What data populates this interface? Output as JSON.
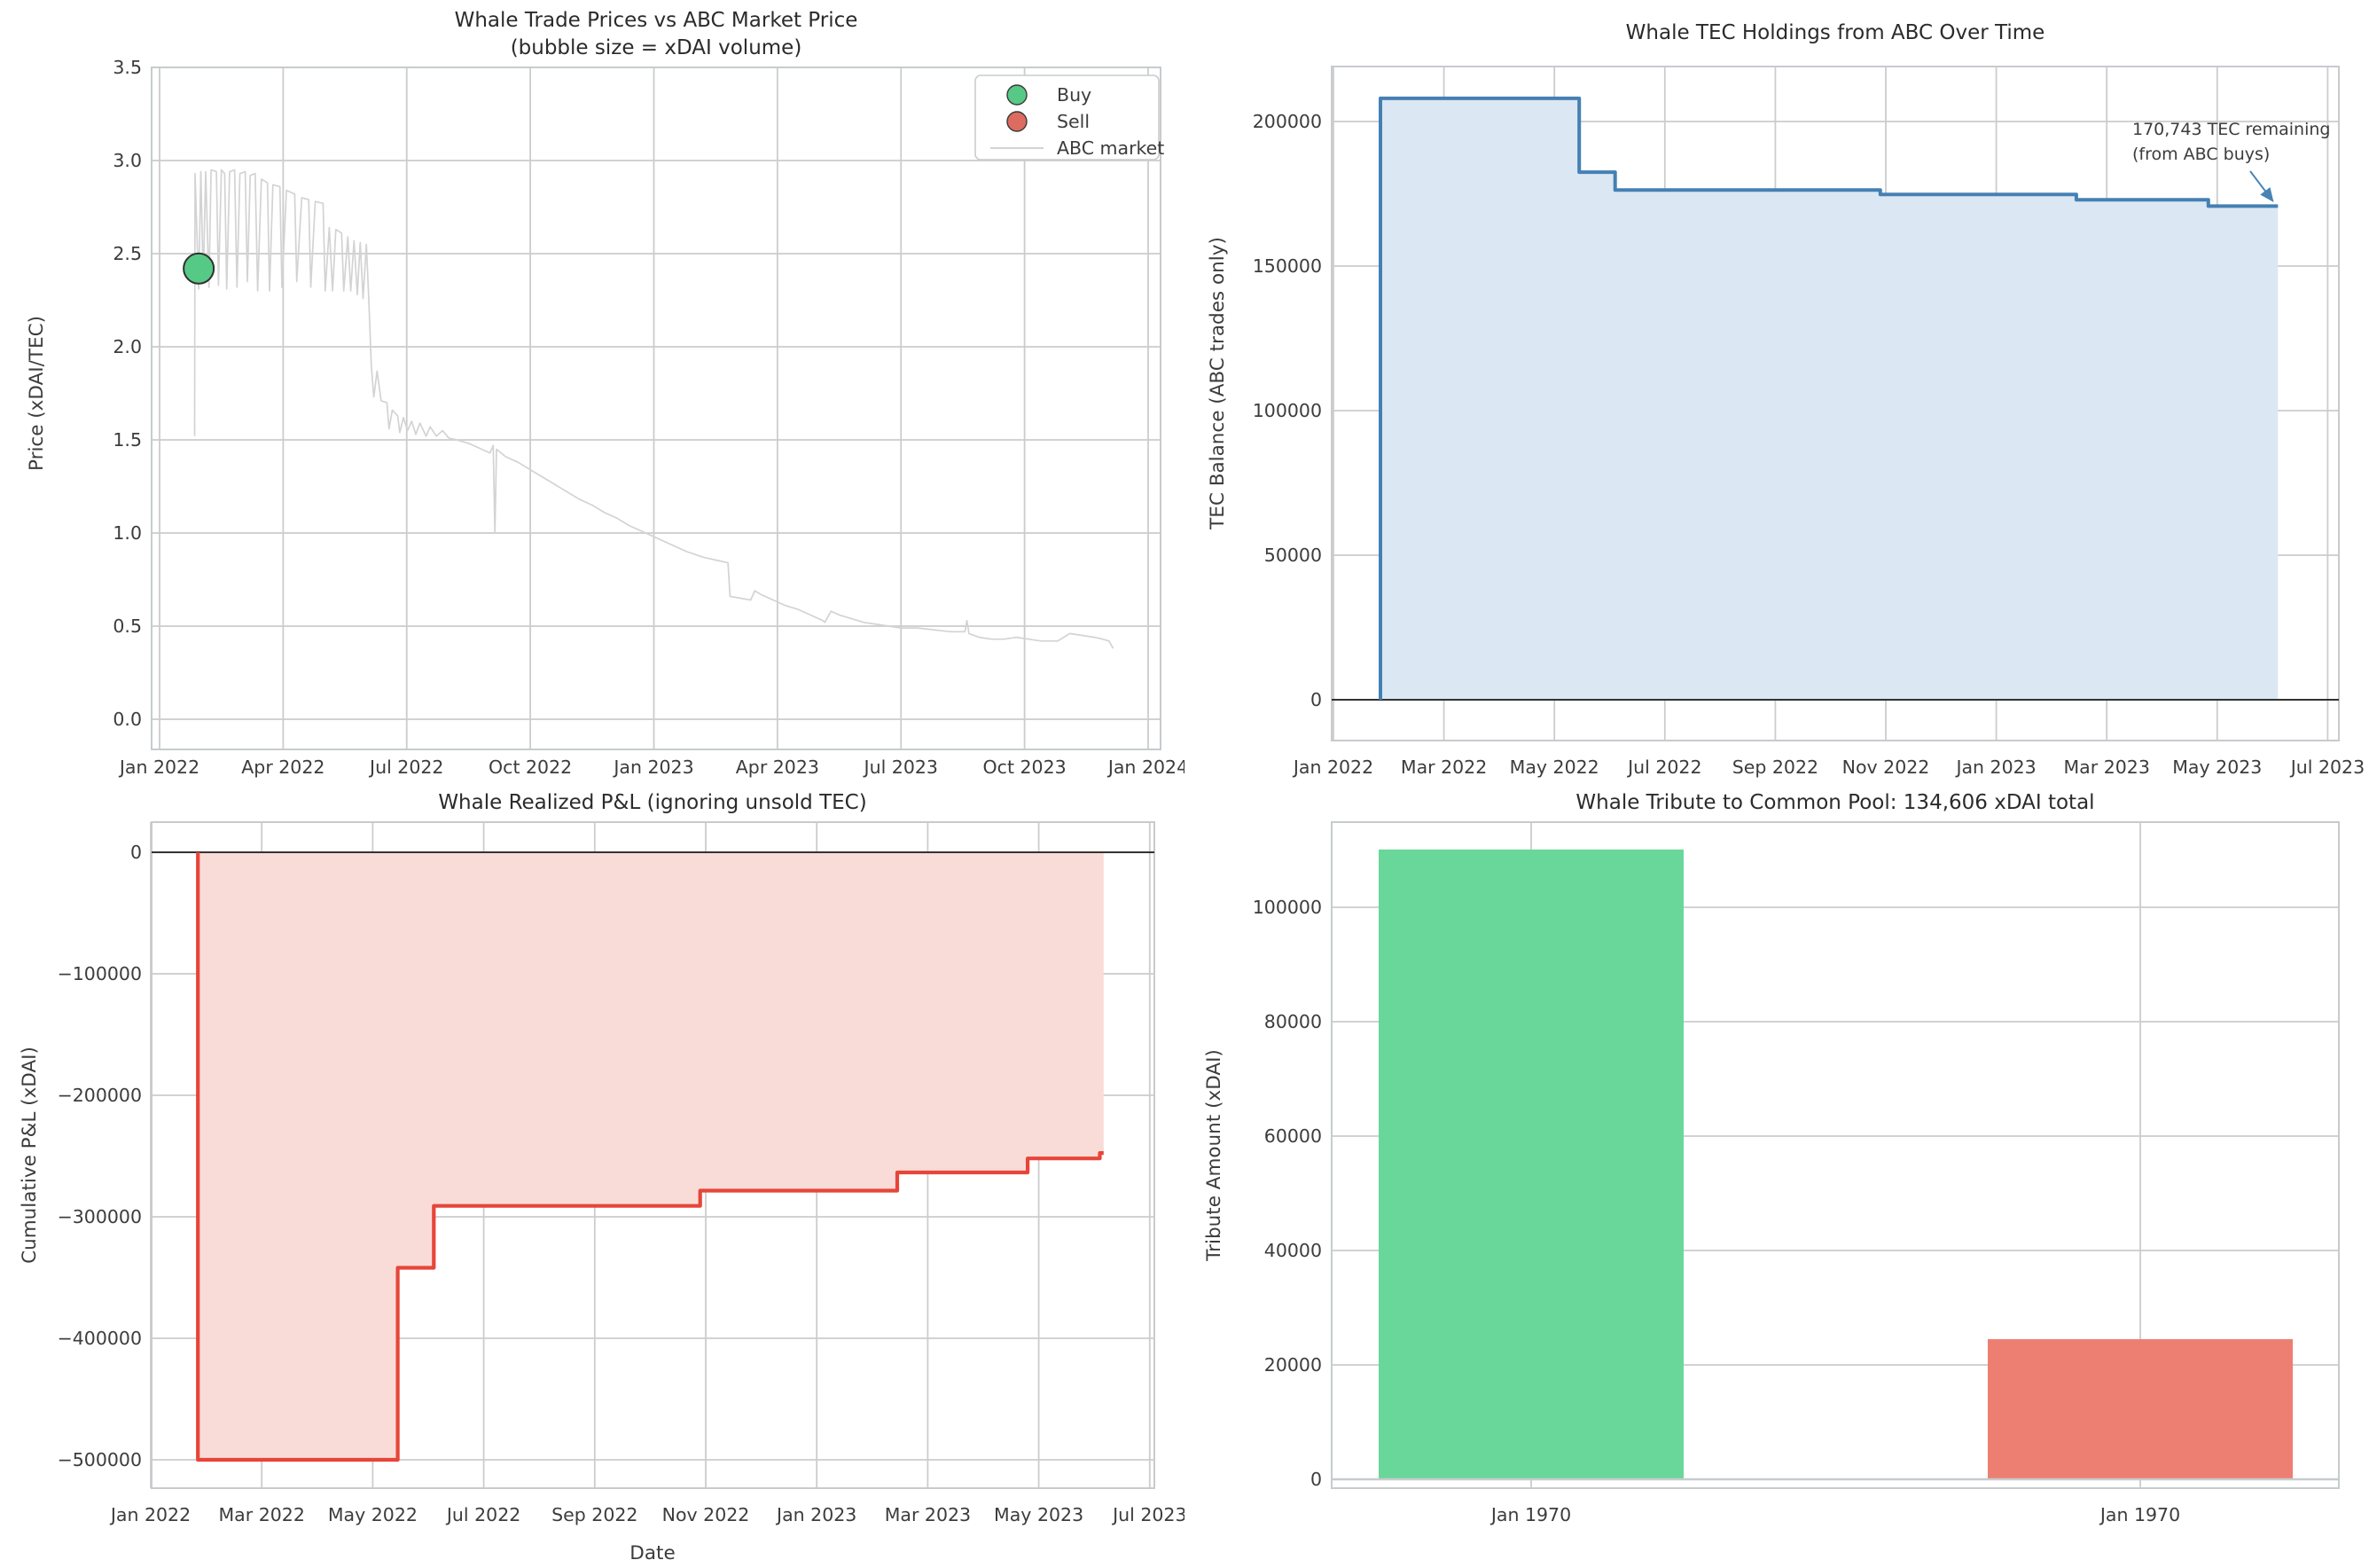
{
  "colors": {
    "background": "#ffffff",
    "grid": "#cccccc",
    "spine": "#c7cbce",
    "tick_text": "#3c3c3c",
    "title_text": "#2b2b2b",
    "buy_green": "#57c987",
    "sell_red": "#dc6b60",
    "market_gray": "#d3d3d3",
    "holdings_blue": "#4580b4",
    "holdings_fill": "#dbe7f2",
    "pnl_red": "#e74539",
    "pnl_fill": "#f9dcd7",
    "bar_green": "#6ad79a",
    "bar_red": "#ec7f72",
    "zero_line": "#1a1a1a",
    "annotation_blue": "#4983b4"
  },
  "chart_data": [
    {
      "type": "scatter",
      "title": "Whale Trade Prices vs ABC Market Price",
      "subtitle": "(bubble size = xDAI volume)",
      "ylabel": "Price (xDAI/TEC)",
      "ylim": [
        0.0,
        3.5
      ],
      "yticks": [
        "0.0",
        "0.5",
        "1.0",
        "1.5",
        "2.0",
        "2.5",
        "3.0",
        "3.5"
      ],
      "ytick_values": [
        0,
        0.5,
        1.0,
        1.5,
        2.0,
        2.5,
        3.0,
        3.5
      ],
      "x_unit": "months since Jan 2022",
      "xtick_months": [
        0,
        3,
        6,
        9,
        12,
        15,
        18,
        21,
        24
      ],
      "xtick_labels": [
        "Jan 2022",
        "Apr 2022",
        "Jul 2022",
        "Oct 2022",
        "Jan 2023",
        "Apr 2023",
        "Jul 2023",
        "Oct 2023",
        "Jan 2024"
      ],
      "legend": [
        {
          "label": "Buy",
          "marker": "circle"
        },
        {
          "label": "Sell",
          "marker": "circle"
        },
        {
          "label": "ABC market",
          "marker": "line"
        }
      ],
      "buy_points": [
        {
          "month": 0.95,
          "price": 2.42,
          "radius": 17,
          "note": "single large buy bubble"
        }
      ],
      "sell_points": [],
      "abc_market_line": [
        [
          0.85,
          1.52
        ],
        [
          0.86,
          2.93
        ],
        [
          0.95,
          2.31
        ],
        [
          1.0,
          2.94
        ],
        [
          1.06,
          2.35
        ],
        [
          1.12,
          2.94
        ],
        [
          1.2,
          2.32
        ],
        [
          1.25,
          2.95
        ],
        [
          1.38,
          2.94
        ],
        [
          1.43,
          2.33
        ],
        [
          1.5,
          2.95
        ],
        [
          1.58,
          2.93
        ],
        [
          1.63,
          2.31
        ],
        [
          1.7,
          2.94
        ],
        [
          1.82,
          2.95
        ],
        [
          1.88,
          2.32
        ],
        [
          1.95,
          2.93
        ],
        [
          2.08,
          2.94
        ],
        [
          2.13,
          2.35
        ],
        [
          2.2,
          2.92
        ],
        [
          2.32,
          2.93
        ],
        [
          2.38,
          2.3
        ],
        [
          2.47,
          2.9
        ],
        [
          2.62,
          2.88
        ],
        [
          2.67,
          2.3
        ],
        [
          2.75,
          2.87
        ],
        [
          2.92,
          2.86
        ],
        [
          2.97,
          2.32
        ],
        [
          3.08,
          2.84
        ],
        [
          3.28,
          2.82
        ],
        [
          3.33,
          2.35
        ],
        [
          3.45,
          2.8
        ],
        [
          3.62,
          2.79
        ],
        [
          3.67,
          2.32
        ],
        [
          3.78,
          2.78
        ],
        [
          3.97,
          2.77
        ],
        [
          4.02,
          2.3
        ],
        [
          4.12,
          2.64
        ],
        [
          4.2,
          2.3
        ],
        [
          4.28,
          2.63
        ],
        [
          4.42,
          2.61
        ],
        [
          4.47,
          2.3
        ],
        [
          4.57,
          2.59
        ],
        [
          4.64,
          2.3
        ],
        [
          4.72,
          2.57
        ],
        [
          4.8,
          2.28
        ],
        [
          4.87,
          2.56
        ],
        [
          4.94,
          2.26
        ],
        [
          5.02,
          2.55
        ],
        [
          5.08,
          2.25
        ],
        [
          5.14,
          1.9
        ],
        [
          5.2,
          1.73
        ],
        [
          5.28,
          1.87
        ],
        [
          5.38,
          1.71
        ],
        [
          5.52,
          1.7
        ],
        [
          5.57,
          1.56
        ],
        [
          5.65,
          1.66
        ],
        [
          5.78,
          1.63
        ],
        [
          5.83,
          1.54
        ],
        [
          5.92,
          1.62
        ],
        [
          6.02,
          1.55
        ],
        [
          6.12,
          1.6
        ],
        [
          6.22,
          1.53
        ],
        [
          6.32,
          1.59
        ],
        [
          6.47,
          1.52
        ],
        [
          6.57,
          1.57
        ],
        [
          6.72,
          1.52
        ],
        [
          6.87,
          1.55
        ],
        [
          7.02,
          1.51
        ],
        [
          7.22,
          1.5
        ],
        [
          7.52,
          1.48
        ],
        [
          7.82,
          1.45
        ],
        [
          8.02,
          1.43
        ],
        [
          8.1,
          1.47
        ],
        [
          8.14,
          1.0
        ],
        [
          8.18,
          1.45
        ],
        [
          8.4,
          1.41
        ],
        [
          8.7,
          1.38
        ],
        [
          9.0,
          1.34
        ],
        [
          9.3,
          1.3
        ],
        [
          9.6,
          1.26
        ],
        [
          9.9,
          1.22
        ],
        [
          10.2,
          1.18
        ],
        [
          10.5,
          1.15
        ],
        [
          10.8,
          1.11
        ],
        [
          11.1,
          1.08
        ],
        [
          11.4,
          1.04
        ],
        [
          11.7,
          1.01
        ],
        [
          12.0,
          0.98
        ],
        [
          12.4,
          0.94
        ],
        [
          12.8,
          0.9
        ],
        [
          13.2,
          0.87
        ],
        [
          13.6,
          0.85
        ],
        [
          13.8,
          0.84
        ],
        [
          13.85,
          0.66
        ],
        [
          14.1,
          0.65
        ],
        [
          14.35,
          0.64
        ],
        [
          14.45,
          0.69
        ],
        [
          14.6,
          0.67
        ],
        [
          14.9,
          0.64
        ],
        [
          15.2,
          0.61
        ],
        [
          15.5,
          0.59
        ],
        [
          15.8,
          0.56
        ],
        [
          16.1,
          0.53
        ],
        [
          16.15,
          0.52
        ],
        [
          16.3,
          0.58
        ],
        [
          16.5,
          0.56
        ],
        [
          16.8,
          0.54
        ],
        [
          17.1,
          0.52
        ],
        [
          17.4,
          0.51
        ],
        [
          17.7,
          0.5
        ],
        [
          18.0,
          0.49
        ],
        [
          18.4,
          0.49
        ],
        [
          18.8,
          0.48
        ],
        [
          19.2,
          0.47
        ],
        [
          19.55,
          0.47
        ],
        [
          19.6,
          0.53
        ],
        [
          19.65,
          0.46
        ],
        [
          19.9,
          0.44
        ],
        [
          20.2,
          0.43
        ],
        [
          20.5,
          0.43
        ],
        [
          20.8,
          0.44
        ],
        [
          21.1,
          0.43
        ],
        [
          21.4,
          0.42
        ],
        [
          21.8,
          0.42
        ],
        [
          22.1,
          0.46
        ],
        [
          22.4,
          0.45
        ],
        [
          22.7,
          0.44
        ],
        [
          22.9,
          0.43
        ],
        [
          23.05,
          0.42
        ],
        [
          23.15,
          0.38
        ]
      ]
    },
    {
      "type": "area",
      "title": "Whale TEC Holdings from ABC Over Time",
      "ylabel": "TEC Balance (ABC trades only)",
      "yticks": [
        "0",
        "50000",
        "100000",
        "150000",
        "200000"
      ],
      "ytick_values": [
        0,
        50000,
        100000,
        150000,
        200000
      ],
      "x_unit": "months since Jan 2022",
      "xtick_months": [
        0,
        2,
        4,
        6,
        8,
        10,
        12,
        14,
        16,
        18
      ],
      "xtick_labels": [
        "Jan 2022",
        "Mar 2022",
        "May 2022",
        "Jul 2022",
        "Sep 2022",
        "Nov 2022",
        "Jan 2023",
        "Mar 2023",
        "May 2023",
        "Jul 2023"
      ],
      "steps": [
        [
          0.85,
          208000
        ],
        [
          4.45,
          182500
        ],
        [
          5.1,
          176300
        ],
        [
          9.9,
          174800
        ],
        [
          13.45,
          172900
        ],
        [
          15.84,
          170743
        ]
      ],
      "end_month": 17.1,
      "final_value": 170743,
      "annotation": {
        "line1": "170,743 TEC remaining",
        "line2": "(from ABC buys)"
      }
    },
    {
      "type": "area",
      "title": "Whale Realized P&L (ignoring unsold TEC)",
      "ylabel": "Cumulative P&L (xDAI)",
      "xlabel": "Date",
      "yticks": [
        "0",
        "−100000",
        "−200000",
        "−300000",
        "−400000",
        "−500000"
      ],
      "ytick_values": [
        0,
        -100000,
        -200000,
        -300000,
        -400000,
        -500000
      ],
      "x_unit": "months since Jan 2022",
      "xtick_months": [
        0,
        2,
        4,
        6,
        8,
        10,
        12,
        14,
        16,
        18
      ],
      "xtick_labels": [
        "Jan 2022",
        "Mar 2022",
        "May 2022",
        "Jul 2022",
        "Sep 2022",
        "Nov 2022",
        "Jan 2023",
        "Mar 2023",
        "May 2023",
        "Jul 2023"
      ],
      "steps": [
        [
          0.85,
          -500000
        ],
        [
          4.45,
          -342000
        ],
        [
          5.1,
          -291000
        ],
        [
          9.9,
          -278500
        ],
        [
          13.45,
          -263500
        ],
        [
          15.8,
          -252000
        ],
        [
          17.1,
          -247500
        ]
      ],
      "end_month": 17.17
    },
    {
      "type": "bar",
      "title": "Whale Tribute to Common Pool: 134,606 xDAI total",
      "ylabel": "Tribute Amount (xDAI)",
      "total_xdai": "134,606",
      "categories": [
        "Jan 1970",
        "Jan 1970"
      ],
      "values": [
        110106,
        24500
      ],
      "bar_roles": [
        "buy-tribute",
        "sell-tribute"
      ],
      "yticks": [
        "0",
        "20000",
        "40000",
        "60000",
        "80000",
        "100000"
      ],
      "ytick_values": [
        0,
        20000,
        40000,
        60000,
        80000,
        100000
      ]
    }
  ]
}
